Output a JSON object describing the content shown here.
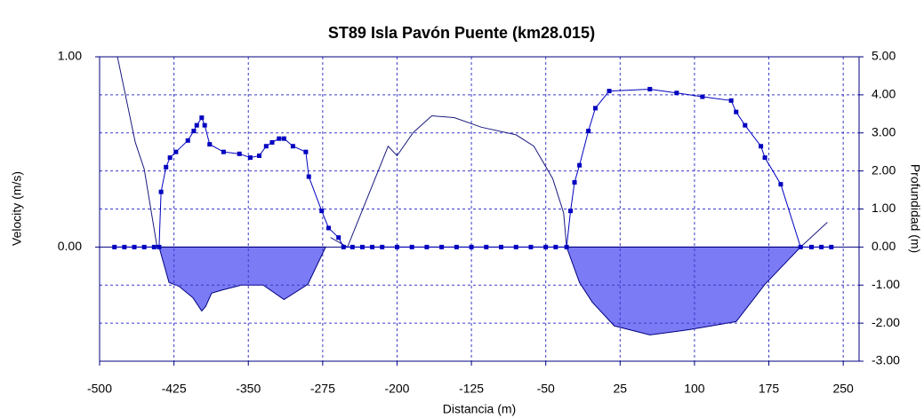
{
  "chart_data": {
    "type": "line",
    "title": "ST89 Isla Pavón Puente (km28.015)",
    "x_label": "Distancia (m)",
    "y_label": "Velocity (m/s)",
    "y2_label": "Profundidad (m)",
    "xlim": [
      -500,
      266
    ],
    "xticks": [
      -500,
      -425,
      -350,
      -275,
      -200,
      -125,
      -50,
      25,
      100,
      175,
      250
    ],
    "ylim": [
      -0.6,
      1.0
    ],
    "yticks": [
      {
        "value": 0,
        "label": "0.00"
      },
      {
        "value": 1,
        "label": "1.00"
      }
    ],
    "y2lim": [
      -3,
      5
    ],
    "y2ticks": [
      {
        "value": 5,
        "label": "5.00"
      },
      {
        "value": 4,
        "label": "4.00"
      },
      {
        "value": 3,
        "label": "3.00"
      },
      {
        "value": 2,
        "label": "2.00"
      },
      {
        "value": 1,
        "label": "1.00"
      },
      {
        "value": 0,
        "label": "0.00"
      },
      {
        "value": -1,
        "label": "-1.00"
      },
      {
        "value": -2,
        "label": "-2.00"
      },
      {
        "value": -3,
        "label": "-3.00"
      }
    ],
    "grid": true,
    "series": [
      {
        "type": "area",
        "axis": "y2",
        "color": "#7b7bf5",
        "x": [
          -440,
          -430,
          -420,
          -406,
          -397,
          -393,
          -387,
          -375,
          -357,
          -335,
          -314,
          -290,
          -272,
          null,
          -29,
          -16,
          -3,
          19,
          55,
          95,
          142,
          171,
          207
        ],
        "values": [
          0,
          -0.93,
          -1.03,
          -1.33,
          -1.68,
          -1.56,
          -1.21,
          -1.12,
          -1.0,
          -1.0,
          -1.38,
          -0.98,
          0,
          null,
          0,
          -0.93,
          -1.45,
          -2.07,
          -2.31,
          -2.17,
          -1.96,
          -0.98,
          0
        ]
      },
      {
        "type": "line",
        "color": "#1a1a80",
        "x": [
          -482,
          -464,
          -455,
          -442,
          null,
          -267,
          -250,
          -209,
          -200,
          -184,
          -165,
          -142,
          -115,
          -80,
          -62,
          -43,
          -32,
          -29,
          null,
          207,
          234
        ],
        "values": [
          1.0,
          0.55,
          0.41,
          0,
          null,
          0.05,
          0,
          0.53,
          0.48,
          0.6,
          0.69,
          0.68,
          0.63,
          0.59,
          0.53,
          0.36,
          0.18,
          0,
          null,
          0,
          0.13
        ]
      },
      {
        "type": "line",
        "color": "#0000c0",
        "marker": "square",
        "x": [
          -485,
          -475,
          -465,
          -455,
          -445,
          -440,
          -438,
          -433,
          -429,
          -423,
          -411,
          -405,
          -402,
          -397,
          -394,
          -389,
          -375,
          -359,
          -348,
          -339,
          -332,
          -326,
          -319,
          -314,
          -305,
          -292,
          -289,
          -276,
          -269,
          -259,
          -254,
          -245,
          -235,
          -225,
          -215,
          -200,
          -185,
          -170,
          -155,
          -140,
          -125,
          -110,
          -95,
          -80,
          -65,
          -50,
          -40,
          -29,
          -25,
          -21,
          -16,
          -7,
          0,
          14,
          55,
          82,
          108,
          137,
          142,
          151,
          167,
          171,
          187,
          207,
          218,
          228,
          238
        ],
        "values": [
          0,
          0,
          0,
          0,
          0,
          0,
          0.29,
          0.42,
          0.47,
          0.5,
          0.56,
          0.61,
          0.64,
          0.68,
          0.64,
          0.54,
          0.5,
          0.49,
          0.47,
          0.48,
          0.53,
          0.55,
          0.57,
          0.57,
          0.53,
          0.5,
          0.37,
          0.19,
          0.1,
          0.05,
          0,
          0,
          0,
          0,
          0,
          0,
          0,
          0,
          0,
          0,
          0,
          0,
          0,
          0,
          0,
          0,
          0,
          0,
          0.19,
          0.34,
          0.43,
          0.61,
          0.73,
          0.82,
          0.83,
          0.81,
          0.79,
          0.77,
          0.71,
          0.64,
          0.53,
          0.47,
          0.33,
          0,
          0,
          0,
          0
        ]
      }
    ]
  }
}
